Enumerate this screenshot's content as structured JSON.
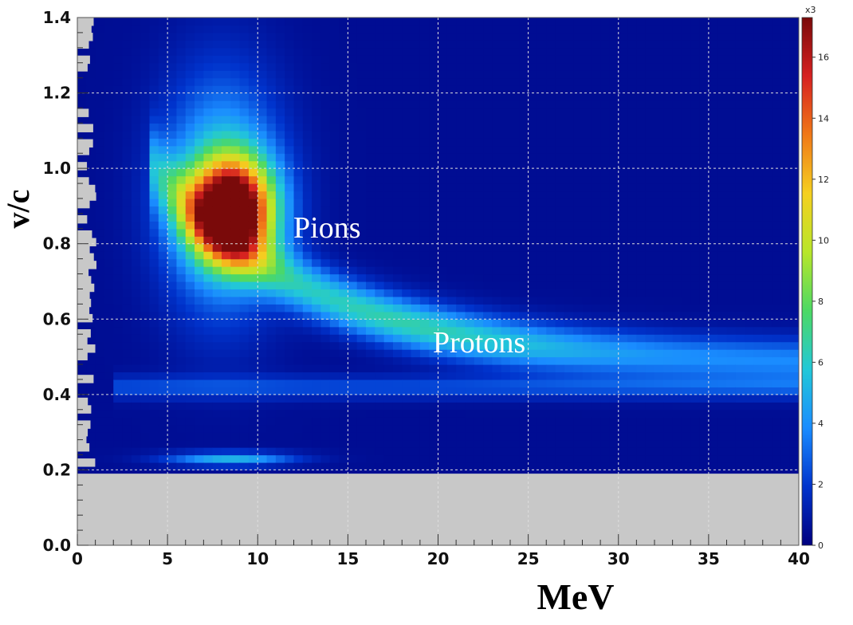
{
  "chart_data": {
    "type": "heatmap",
    "title": "",
    "xlabel": "MeV",
    "ylabel": "v/c",
    "xlim": [
      0,
      40
    ],
    "ylim": [
      0.0,
      1.4
    ],
    "x_ticks": [
      "0",
      "5",
      "10",
      "15",
      "20",
      "25",
      "30",
      "35",
      "40"
    ],
    "y_ticks": [
      "0.0",
      "0.2",
      "0.4",
      "0.6",
      "0.8",
      "1.0",
      "1.2",
      "1.4"
    ],
    "grid": true,
    "colorbar": {
      "multiplier": "x3",
      "range": [
        0,
        17.3
      ],
      "ticks": [
        "0",
        "2",
        "4",
        "6",
        "8",
        "10",
        "12",
        "14",
        "16"
      ],
      "colors": [
        "#00007f",
        "#0033cc",
        "#1a8cff",
        "#22c8d8",
        "#4cd964",
        "#b8e62a",
        "#f5d020",
        "#f07818",
        "#d62020",
        "#7a0a0a"
      ]
    },
    "features": [
      {
        "label": "Pions",
        "energy_mev": 8.6,
        "v_over_c": 0.89,
        "peak_counts_x3": 17.3
      },
      {
        "label": "Protons",
        "energy_mev": [
          12,
          40
        ],
        "v_over_c": [
          0.7,
          0.48
        ],
        "peak_counts_x3": 6
      },
      {
        "label": "",
        "energy_mev": 8.5,
        "v_over_c": 0.23,
        "peak_counts_x3": 4.5
      }
    ],
    "no_data_region": {
      "v_over_c_below": 0.19
    }
  },
  "annotations": {
    "pions": "Pions",
    "protons": "Protons"
  }
}
